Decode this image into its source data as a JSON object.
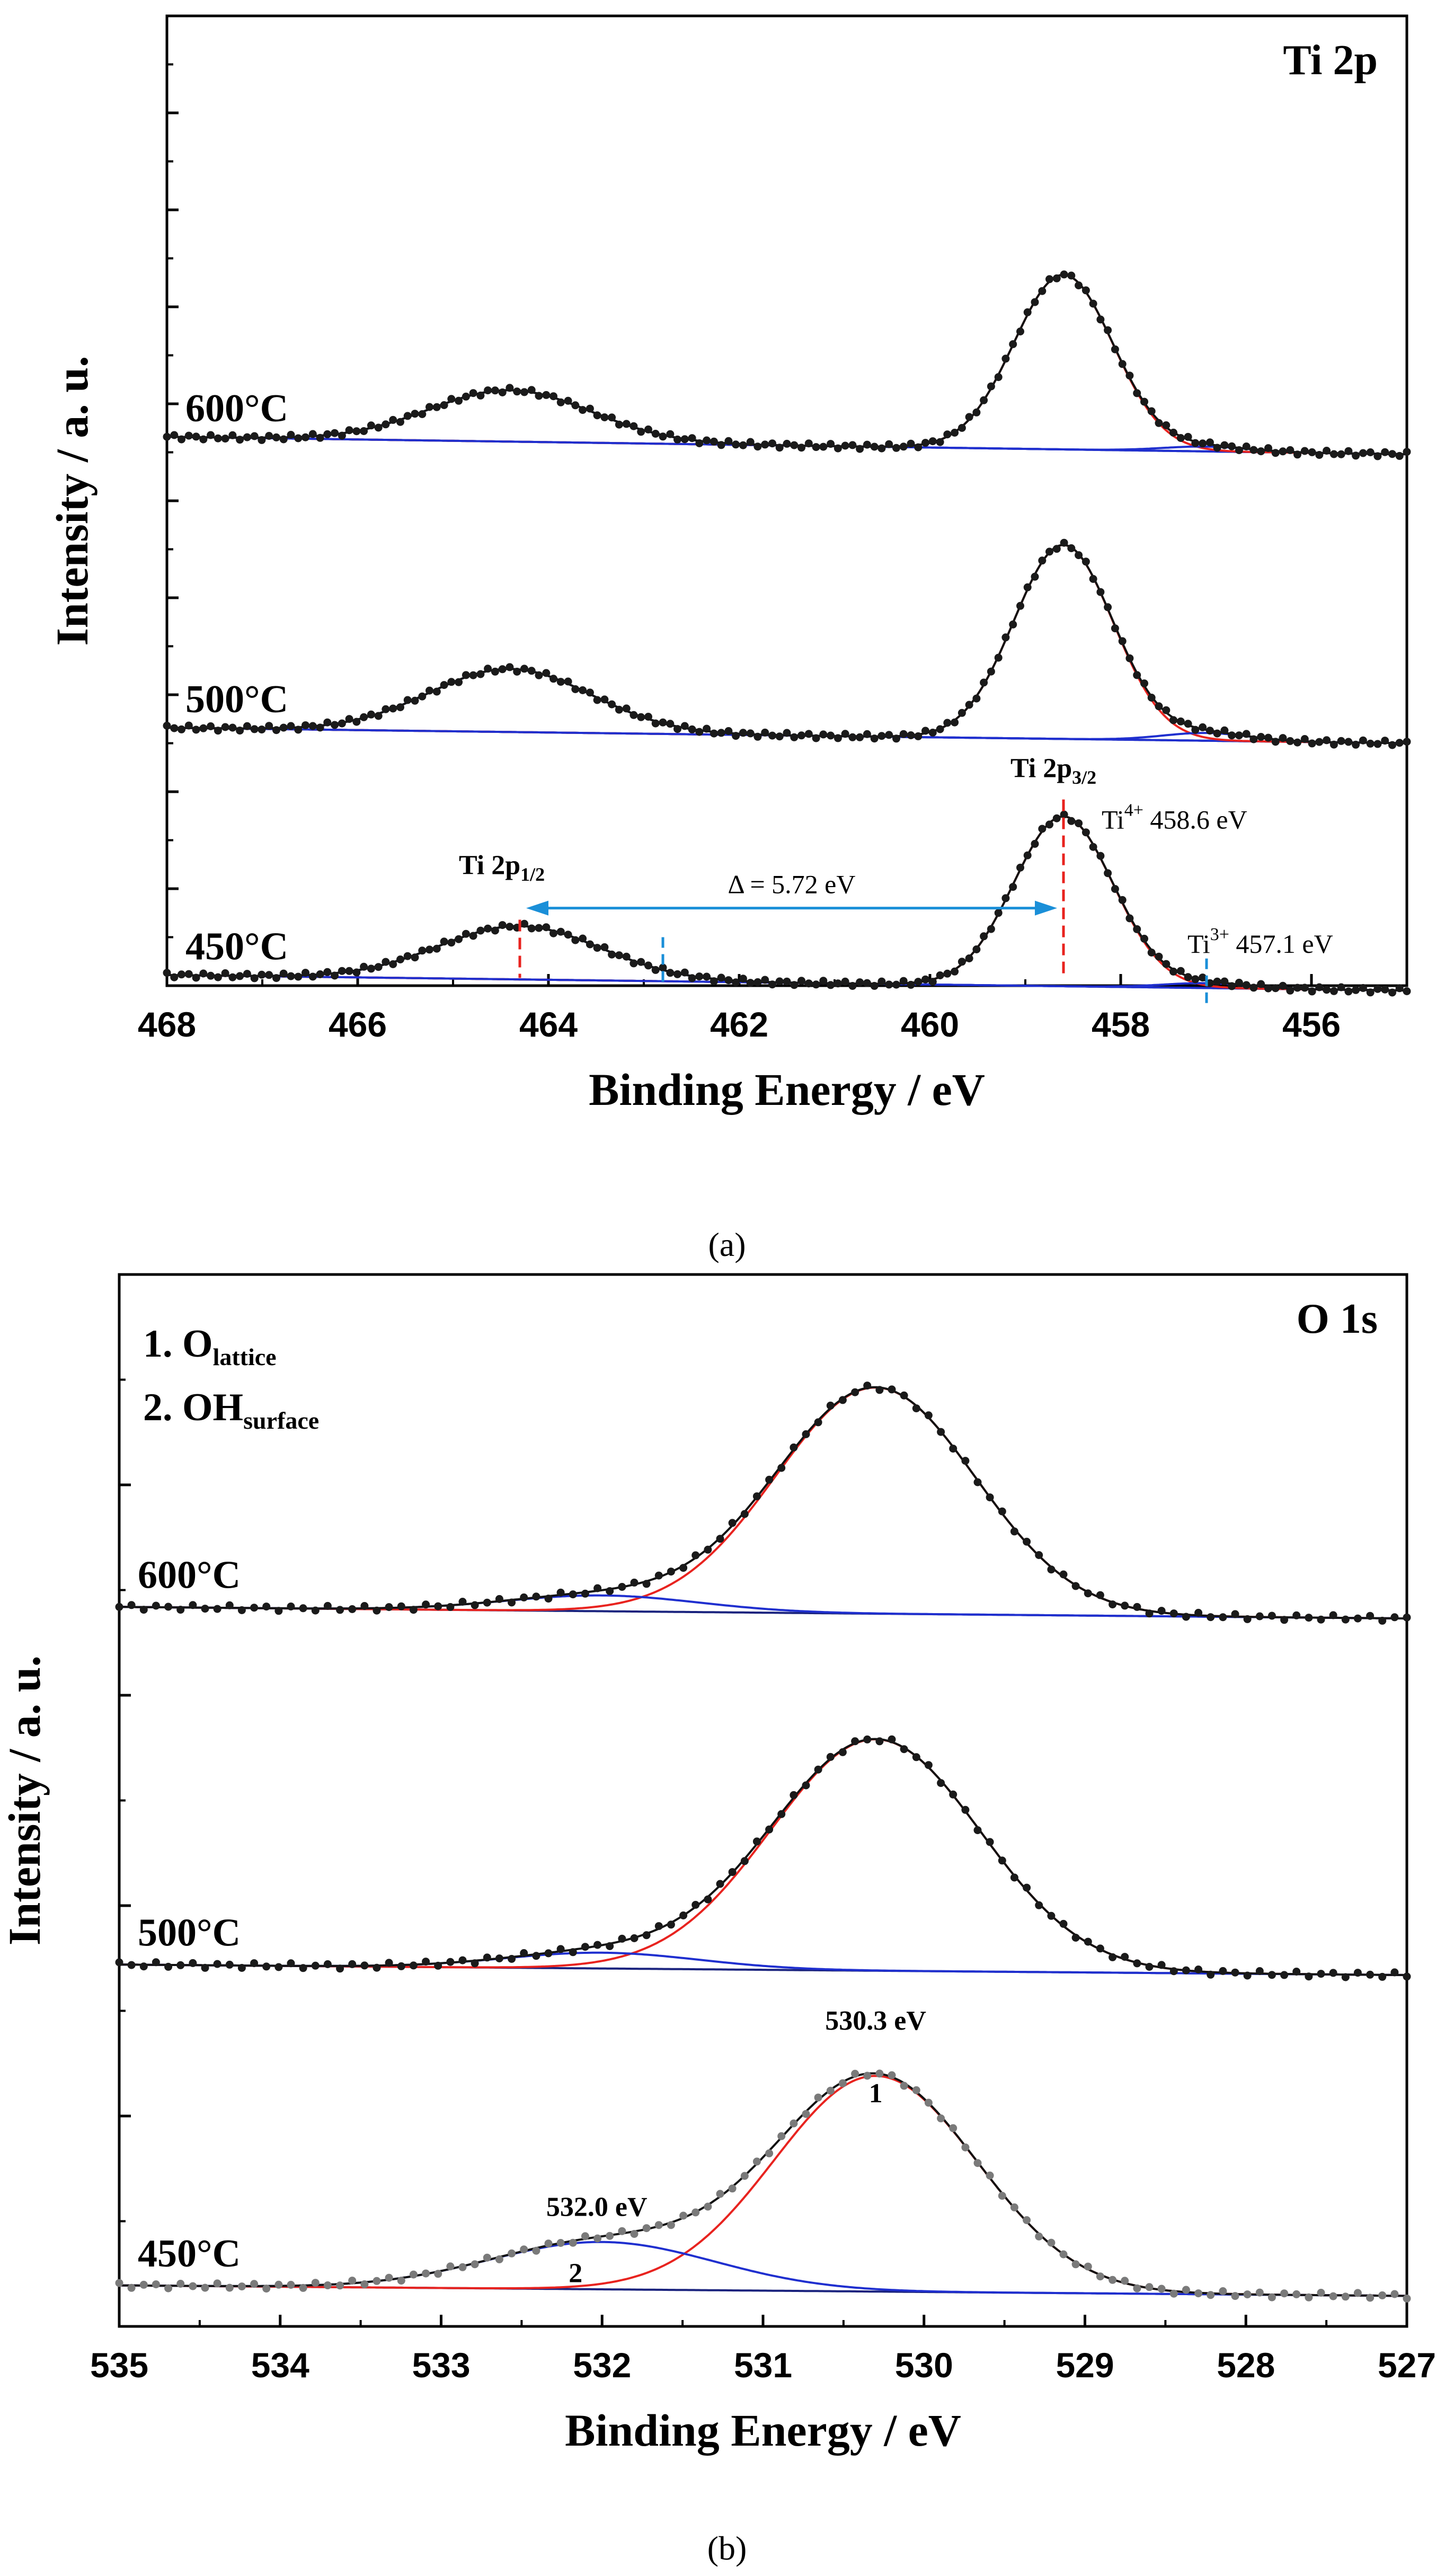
{
  "figure": {
    "caption_a": "(a)",
    "caption_b": "(b)"
  },
  "colors": {
    "data": "#1a1a1a",
    "data_faint": "#7a7a7a",
    "envelope": "#111111",
    "main_peak": "#e8231f",
    "minor_peak": "#1f2fcf",
    "background": "#1a237e",
    "guide_red": "#e8231f",
    "guide_blue": "#1a8fd8",
    "arrow": "#1a8fd8"
  },
  "chart_data": [
    {
      "type": "line",
      "panel": "a",
      "title": "Ti 2p",
      "xlabel": "Binding Energy / eV",
      "ylabel": "Intensity / a. u.",
      "xlim": [
        468,
        455
      ],
      "x_reversed": true,
      "xticks": [
        468,
        466,
        464,
        462,
        460,
        458,
        456
      ],
      "y_ticks_labeled": false,
      "ylim": [
        0,
        100
      ],
      "yticks": [
        0,
        10,
        20,
        30,
        40,
        50,
        60,
        70,
        80,
        90,
        100
      ],
      "series": [
        {
          "name": "600°C",
          "offset": 56,
          "background": [
            0.6,
            -1.2
          ],
          "peaks": [
            {
              "label": "Ti 2p1/2",
              "center": 464.4,
              "height": 5.3,
              "sigma": 0.85,
              "color": "minor"
            },
            {
              "label": "Ti 2p3/2",
              "center": 458.6,
              "height": 18,
              "sigma": 0.52,
              "color": "main"
            },
            {
              "label": "Ti3+",
              "center": 457.1,
              "height": 0.5,
              "sigma": 0.45,
              "color": "minor"
            }
          ]
        },
        {
          "name": "500°C",
          "offset": 26,
          "background": [
            0.6,
            -1.0
          ],
          "peaks": [
            {
              "label": "Ti 2p1/2",
              "center": 464.4,
              "height": 6.5,
              "sigma": 0.85,
              "color": "minor"
            },
            {
              "label": "Ti 2p3/2",
              "center": 458.6,
              "height": 20,
              "sigma": 0.52,
              "color": "main"
            },
            {
              "label": "Ti3+",
              "center": 457.1,
              "height": 0.8,
              "sigma": 0.45,
              "color": "minor"
            }
          ]
        },
        {
          "name": "450°C",
          "offset": 0.5,
          "background": [
            0.6,
            -1.0
          ],
          "peaks": [
            {
              "label": "Ti 2p1/2",
              "center": 464.3,
              "height": 5.5,
              "sigma": 0.85,
              "color": "minor"
            },
            {
              "label": "Ti 2p3/2",
              "center": 458.6,
              "height": 17.5,
              "sigma": 0.52,
              "color": "main"
            },
            {
              "label": "Ti3+",
              "center": 457.1,
              "height": 0.5,
              "sigma": 0.45,
              "color": "minor"
            }
          ]
        }
      ],
      "annotations": {
        "ti2p12": {
          "text": "Ti 2p",
          "sub": "1/2",
          "x": 464.3
        },
        "ti2p32": {
          "text": "Ti 2p",
          "sub": "3/2",
          "x": 458.6
        },
        "delta": {
          "text": "Δ = 5.72 eV",
          "from": 464.3,
          "to": 458.6
        },
        "ti4": {
          "text": "Ti",
          "sup": "4+",
          "value": "458.6 eV"
        },
        "ti3": {
          "text": "Ti",
          "sup": "3+",
          "value": "457.1 eV"
        },
        "blue_guides": [
          462.8,
          457.1
        ],
        "red_guides": [
          464.3,
          458.6
        ]
      }
    },
    {
      "type": "line",
      "panel": "b",
      "title": "O 1s",
      "xlabel": "Binding Energy / eV",
      "ylabel": "Intensity / a. u.",
      "xlim": [
        535,
        527
      ],
      "x_reversed": true,
      "xticks": [
        535,
        534,
        533,
        532,
        531,
        530,
        529,
        528,
        527
      ],
      "y_ticks_labeled": false,
      "ylim": [
        0,
        100
      ],
      "yticks": [
        0,
        20,
        40,
        60,
        80,
        100
      ],
      "legend_items": [
        {
          "text": "1. O",
          "sub": "lattice"
        },
        {
          "text": "2. OH",
          "sub": "surface"
        }
      ],
      "series": [
        {
          "name": "600°C",
          "offset": 68,
          "background": [
            0.4,
            -0.7
          ],
          "peaks": [
            {
              "label": "1",
              "center": 530.3,
              "height": 21.5,
              "sigma": 0.62,
              "color": "main"
            },
            {
              "label": "2",
              "center": 532.0,
              "height": 1.5,
              "sigma": 0.6,
              "color": "minor"
            }
          ]
        },
        {
          "name": "500°C",
          "offset": 34,
          "background": [
            0.4,
            -0.6
          ],
          "peaks": [
            {
              "label": "1",
              "center": 530.3,
              "height": 22,
              "sigma": 0.65,
              "color": "main"
            },
            {
              "label": "2",
              "center": 532.0,
              "height": 1.5,
              "sigma": 0.6,
              "color": "minor"
            }
          ]
        },
        {
          "name": "450°C",
          "offset": 3.5,
          "background": [
            0.4,
            -0.6
          ],
          "peaks": [
            {
              "label": "1",
              "center": 530.3,
              "height": 20.5,
              "sigma": 0.63,
              "color": "main"
            },
            {
              "label": "2",
              "center": 532.0,
              "height": 4.5,
              "sigma": 0.7,
              "color": "minor"
            }
          ]
        }
      ],
      "annotations": {
        "peak1": {
          "value": "530.3 eV",
          "number": "1",
          "x": 530.3
        },
        "peak2": {
          "value": "532.0 eV",
          "number": "2",
          "x": 532.0
        }
      }
    }
  ]
}
